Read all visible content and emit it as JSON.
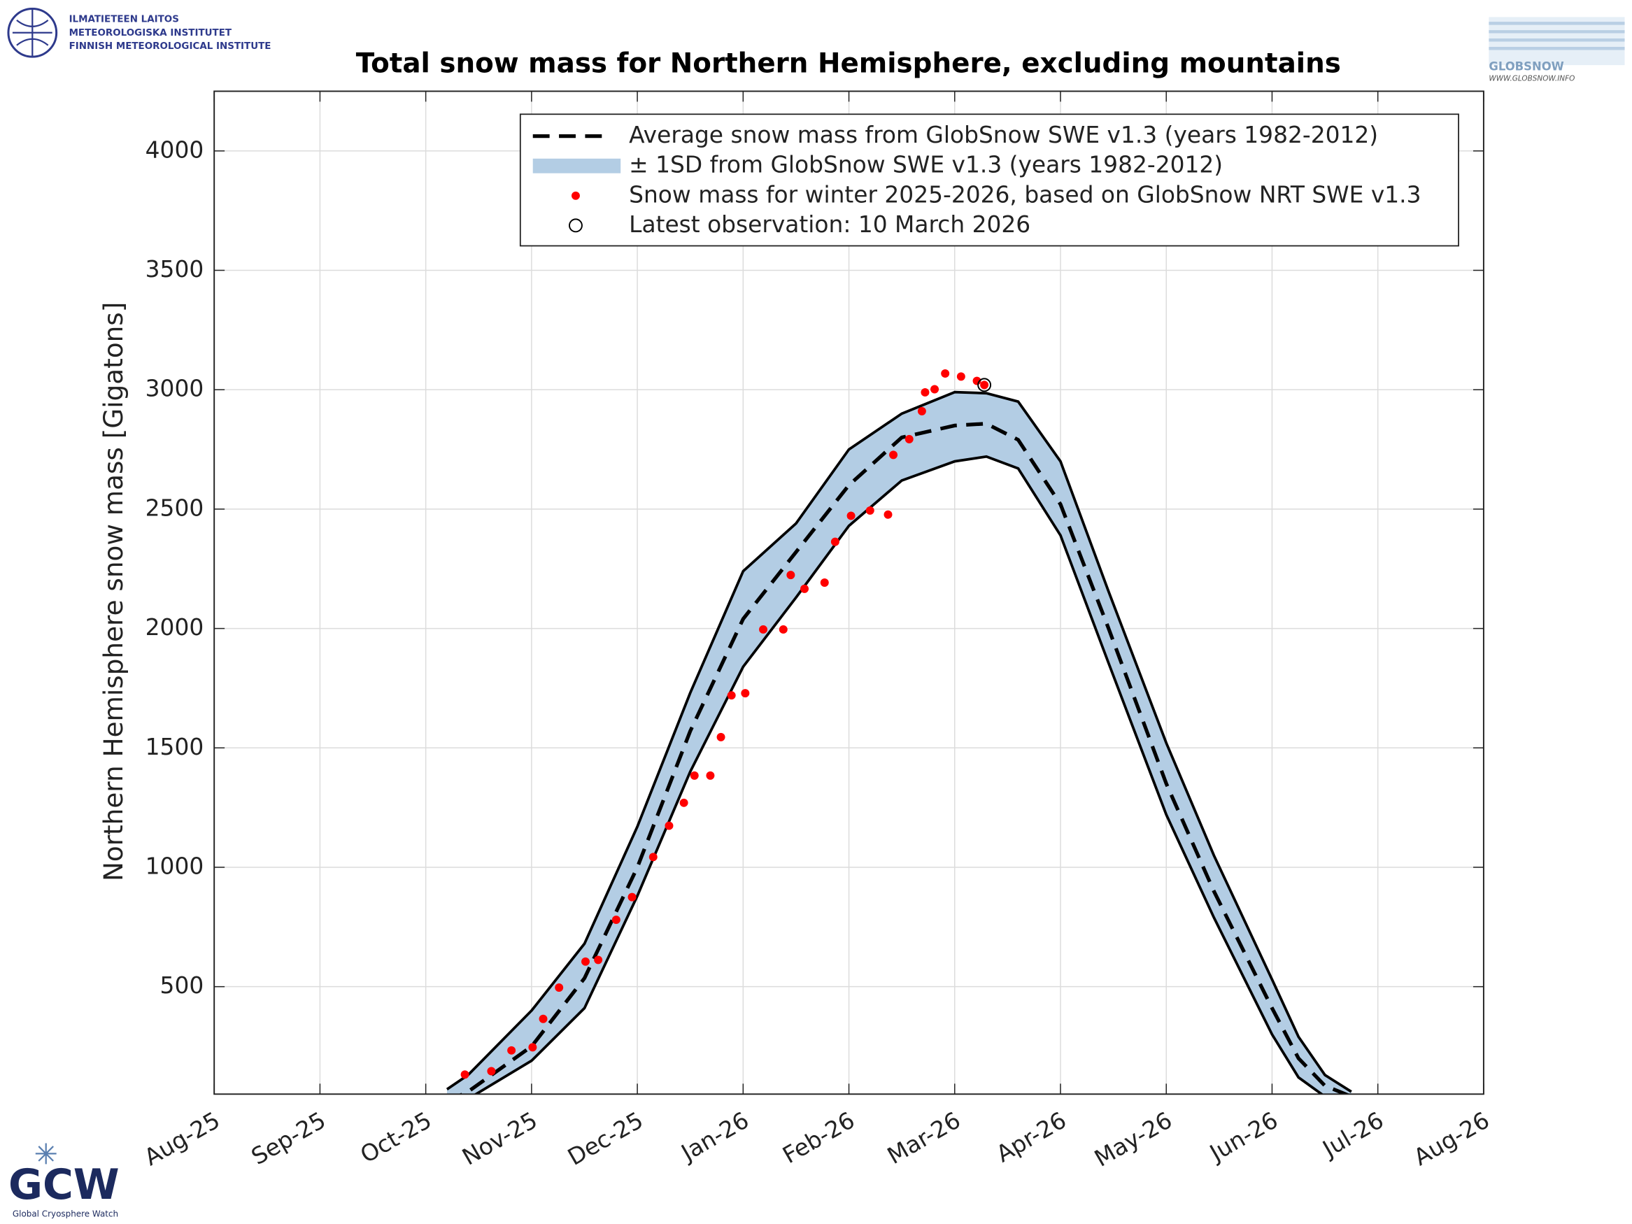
{
  "chart_data": {
    "type": "line",
    "title": "Total snow mass for Northern Hemisphere, excluding mountains",
    "ylabel": "Northern Hemisphere snow mass [Gigatons]",
    "xlim": [
      0,
      12
    ],
    "xticks": [
      {
        "value": 0,
        "label": "Aug-25"
      },
      {
        "value": 1,
        "label": "Sep-25"
      },
      {
        "value": 2,
        "label": "Oct-25"
      },
      {
        "value": 3,
        "label": "Nov-25"
      },
      {
        "value": 4,
        "label": "Dec-25"
      },
      {
        "value": 5,
        "label": "Jan-26"
      },
      {
        "value": 6,
        "label": "Feb-26"
      },
      {
        "value": 7,
        "label": "Mar-26"
      },
      {
        "value": 8,
        "label": "Apr-26"
      },
      {
        "value": 9,
        "label": "May-26"
      },
      {
        "value": 10,
        "label": "Jun-26"
      },
      {
        "value": 11,
        "label": "Jul-26"
      },
      {
        "value": 12,
        "label": "Aug-26"
      }
    ],
    "ylim": [
      50,
      4250
    ],
    "yticks": [
      500,
      1000,
      1500,
      2000,
      2500,
      3000,
      3500,
      4000
    ],
    "grid": true,
    "legend": "top-right",
    "series": [
      {
        "name": "Average snow mass from GlobSnow SWE v1.3 (years 1982-2012)",
        "color": "#000000",
        "marker": "dashed",
        "x": [
          2.2,
          2.4,
          3.0,
          3.5,
          4.0,
          4.5,
          5.0,
          5.5,
          6.0,
          6.5,
          7.0,
          7.3,
          7.6,
          8.0,
          8.45,
          9.0,
          9.45,
          10.0,
          10.25,
          10.5,
          10.75
        ],
        "values": [
          20,
          60,
          250,
          535,
          1000,
          1570,
          2040,
          2320,
          2600,
          2800,
          2850,
          2858,
          2790,
          2520,
          2005,
          1350,
          900,
          410,
          200,
          85,
          40
        ]
      },
      {
        "name": "± 1SD from GlobSnow SWE v1.3 (years 1982-2012)",
        "color": "#b3cde4",
        "marker": "band",
        "x": [
          2.2,
          2.4,
          3.0,
          3.5,
          4.0,
          4.5,
          5.0,
          5.5,
          6.0,
          6.5,
          7.0,
          7.3,
          7.6,
          8.0,
          8.45,
          9.0,
          9.45,
          10.0,
          10.25,
          10.5,
          10.75
        ],
        "upper": [
          70,
          130,
          400,
          680,
          1170,
          1730,
          2240,
          2440,
          2750,
          2900,
          2990,
          2985,
          2950,
          2700,
          2160,
          1520,
          1050,
          530,
          290,
          130,
          60
        ],
        "lower": [
          0,
          30,
          190,
          410,
          880,
          1400,
          1840,
          2130,
          2430,
          2620,
          2700,
          2720,
          2670,
          2390,
          1860,
          1220,
          790,
          300,
          120,
          40,
          0
        ]
      },
      {
        "name": "Snow mass for winter 2025-2026, based on GlobSnow NRT SWE v1.3",
        "color": "#ff0000",
        "marker": "dot",
        "x": [
          2.37,
          2.62,
          2.81,
          3.01,
          3.11,
          3.26,
          3.51,
          3.63,
          3.8,
          3.95,
          4.15,
          4.3,
          4.44,
          4.54,
          4.69,
          4.79,
          4.89,
          5.02,
          5.19,
          5.38,
          5.45,
          5.58,
          5.77,
          5.87,
          6.02,
          6.2,
          6.37,
          6.42,
          6.57,
          6.69,
          6.72,
          6.81,
          6.91,
          7.06,
          7.21,
          7.28
        ],
        "values": [
          132,
          146,
          233,
          246,
          365,
          496,
          605,
          612,
          780,
          875,
          1043,
          1174,
          1270,
          1384,
          1384,
          1545,
          1720,
          1729,
          1996,
          1996,
          2224,
          2166,
          2192,
          2363,
          2472,
          2494,
          2477,
          2727,
          2793,
          2910,
          2989,
          3002,
          3068,
          3055,
          3037,
          3020
        ]
      },
      {
        "name": "Latest observation: 10 March 2026",
        "color": "#000000",
        "marker": "circle",
        "x": [
          7.28
        ],
        "values": [
          3020
        ]
      }
    ]
  },
  "logos": {
    "fmi": [
      "ILMATIETEEN LAITOS",
      "METEOROLOGISKA INSTITUTET",
      "FINNISH METEOROLOGICAL INSTITUTE"
    ],
    "globsnow": [
      "GLOBSNOW",
      "WWW.GLOBSNOW.INFO"
    ],
    "gcw": [
      "GCW",
      "Global Cryosphere Watch"
    ]
  }
}
